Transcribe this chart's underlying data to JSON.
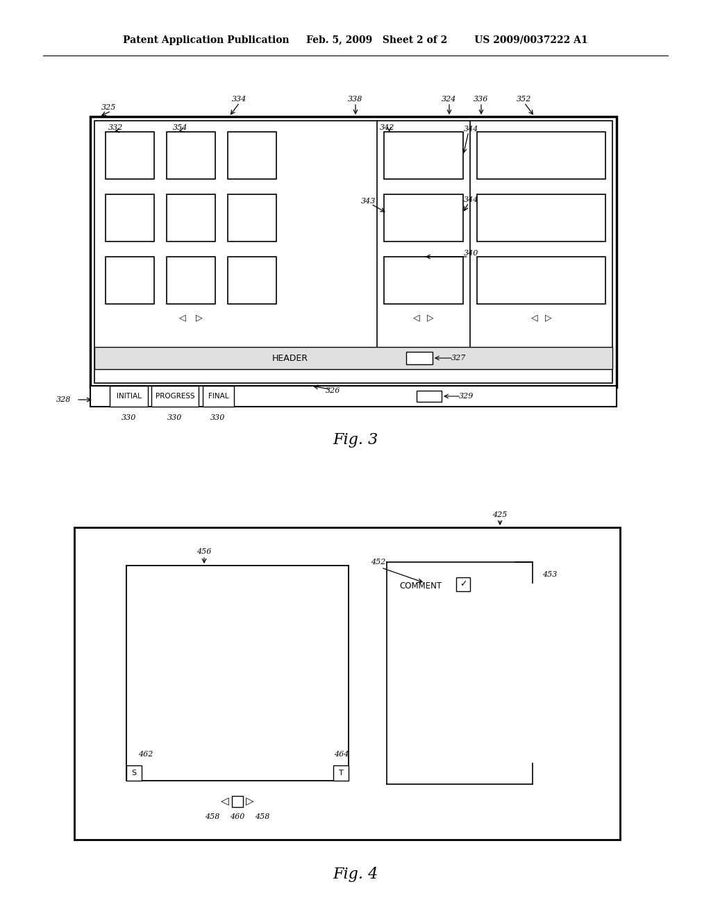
{
  "bg_color": "#ffffff",
  "header_text_left": "Patent Application Publication",
  "header_text_mid": "Feb. 5, 2009   Sheet 2 of 2",
  "header_text_right": "US 2009/0037222 A1",
  "fig3_label": "Fig. 3",
  "fig4_label": "Fig. 4"
}
